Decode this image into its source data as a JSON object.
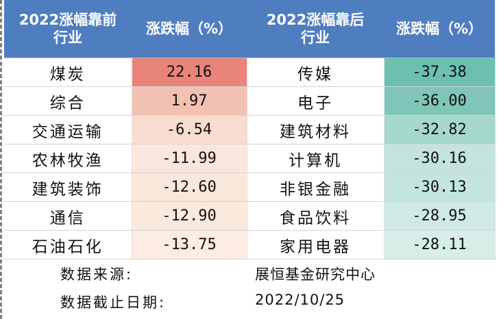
{
  "header": {
    "left_group": [
      "2022涨幅靠前",
      "行业"
    ],
    "left_change": "涨跌幅（%）",
    "right_group": [
      "2022涨幅靠后",
      "行业"
    ],
    "right_change": "涨跌幅（%）"
  },
  "rows": [
    {
      "top_industry": "煤炭",
      "top_change": "22.16",
      "bottom_industry": "传媒",
      "bottom_change": "-37.38"
    },
    {
      "top_industry": "综合",
      "top_change": "1.97",
      "bottom_industry": "电子",
      "bottom_change": "-36.00"
    },
    {
      "top_industry": "交通运输",
      "top_change": "-6.54",
      "bottom_industry": "建筑材料",
      "bottom_change": "-32.82"
    },
    {
      "top_industry": "农林牧渔",
      "top_change": "-11.99",
      "bottom_industry": "计算机",
      "bottom_change": "-30.16"
    },
    {
      "top_industry": "建筑装饰",
      "top_change": "-12.60",
      "bottom_industry": "非银金融",
      "bottom_change": "-30.13"
    },
    {
      "top_industry": "通信",
      "top_change": "-12.90",
      "bottom_industry": "食品饮料",
      "bottom_change": "-28.95"
    },
    {
      "top_industry": "石油石化",
      "top_change": "-13.75",
      "bottom_industry": "家用电器",
      "bottom_change": "-28.11"
    }
  ],
  "heat_colors": {
    "top_change": [
      "#e8847a",
      "#f2c1b2",
      "#f7dccf",
      "#fae6da",
      "#fae7dc",
      "#fbe9de",
      "#fcebe1"
    ],
    "bottom_change": [
      "#6dbfaf",
      "#80c6b7",
      "#a6d8cd",
      "#c2e4dc",
      "#c3e5dd",
      "#cfeae4",
      "#d6ede8"
    ]
  },
  "footer": {
    "source_label": "数据来源:",
    "source_value": "展恒基金研究中心",
    "date_label": "数据截止日期:",
    "date_value": "2022/10/25"
  },
  "colors": {
    "header_bg": "#4e7ec0",
    "header_text": "#ffffff"
  }
}
